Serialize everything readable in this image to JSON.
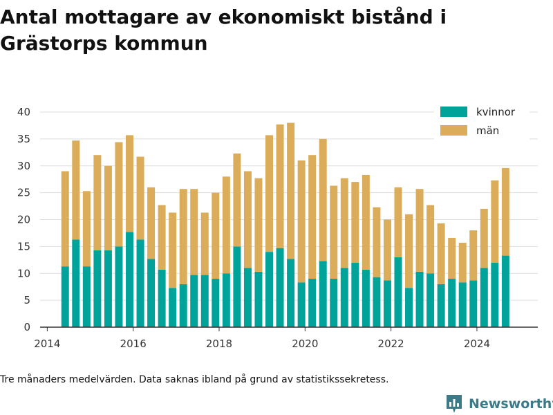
{
  "title": "Antal mottagare av ekonomiskt bistånd i Grästorps kommun",
  "footnote": "Tre månaders medelvärden. Data saknas ibland på grund av statistikssekretess.",
  "brand": {
    "name": "Newsworthy"
  },
  "colors": {
    "kvinnor": "#00a39a",
    "man": "#dbad5a",
    "grid": "#dddddd",
    "axis": "#333333",
    "brand": "#3b7a86"
  },
  "chart_data": {
    "type": "bar",
    "stacked": true,
    "x_type": "date",
    "x_ticks": [
      2014,
      2016,
      2018,
      2020,
      2022,
      2024
    ],
    "xlim": [
      "2013-11",
      "2025-06"
    ],
    "ylim": [
      0,
      40
    ],
    "y_ticks": [
      0,
      5,
      10,
      15,
      20,
      25,
      30,
      35,
      40
    ],
    "grid": true,
    "legend_position": "top-right",
    "dates": [
      "2014-06",
      "2014-09",
      "2014-12",
      "2015-03",
      "2015-06",
      "2015-09",
      "2015-12",
      "2016-03",
      "2016-06",
      "2016-09",
      "2016-12",
      "2017-03",
      "2017-06",
      "2017-09",
      "2017-12",
      "2018-03",
      "2018-06",
      "2018-09",
      "2018-12",
      "2019-03",
      "2019-06",
      "2019-09",
      "2019-12",
      "2020-03",
      "2020-06",
      "2020-09",
      "2020-12",
      "2021-03",
      "2021-06",
      "2021-09",
      "2021-12",
      "2022-03",
      "2022-06",
      "2022-09",
      "2022-12",
      "2023-03",
      "2023-06",
      "2023-09",
      "2023-12",
      "2024-03",
      "2024-06",
      "2024-09"
    ],
    "series": [
      {
        "name": "kvinnor",
        "values": [
          11.3,
          16.3,
          11.3,
          14.3,
          14.3,
          15,
          17.7,
          16.3,
          12.7,
          10.7,
          7.3,
          8,
          9.7,
          9.7,
          9,
          10,
          15,
          11,
          10.3,
          14,
          14.7,
          12.7,
          8.3,
          9,
          12.3,
          9,
          11,
          12,
          10.7,
          9.3,
          8.7,
          13,
          7.3,
          10.3,
          10,
          8,
          9,
          8.3,
          8.7,
          11,
          12,
          13.3
        ]
      },
      {
        "name": "män",
        "values": [
          17.7,
          18.4,
          14,
          17.7,
          15.7,
          19.4,
          18,
          15.4,
          13.3,
          12,
          14,
          17.7,
          16,
          11.6,
          16,
          18,
          17.3,
          18,
          17.4,
          21.7,
          23,
          25.3,
          22.7,
          23,
          22.7,
          17.3,
          16.7,
          15,
          17.6,
          13,
          11.3,
          13,
          13.7,
          15.4,
          12.7,
          11.3,
          7.6,
          7.4,
          9.3,
          11,
          15.3,
          16.3
        ]
      }
    ]
  }
}
